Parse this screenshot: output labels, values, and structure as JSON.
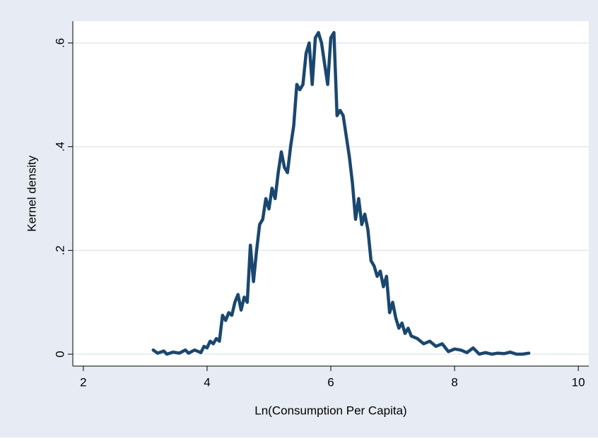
{
  "chart_data": {
    "type": "line",
    "xlabel": "Ln(Consumption Per Capita)",
    "ylabel": "Kernel density",
    "xlim": [
      1.83,
      10.17
    ],
    "ylim": [
      -0.023,
      0.642
    ],
    "xticks": [
      2,
      4,
      6,
      8,
      10
    ],
    "yticks": [
      0,
      {
        "value": 0.2,
        "label": ".2"
      },
      {
        "value": 0.4,
        "label": ".4"
      },
      {
        "value": 0.6,
        "label": ".6"
      }
    ],
    "grid": true,
    "series": [
      {
        "color": "#1a476f",
        "x": [
          3.13,
          3.2,
          3.3,
          3.35,
          3.45,
          3.55,
          3.65,
          3.7,
          3.8,
          3.9,
          3.95,
          4.0,
          4.05,
          4.1,
          4.15,
          4.2,
          4.25,
          4.3,
          4.35,
          4.4,
          4.45,
          4.5,
          4.55,
          4.6,
          4.65,
          4.7,
          4.75,
          4.8,
          4.85,
          4.9,
          4.95,
          5.0,
          5.05,
          5.1,
          5.15,
          5.2,
          5.25,
          5.3,
          5.35,
          5.4,
          5.45,
          5.5,
          5.55,
          5.6,
          5.65,
          5.7,
          5.75,
          5.8,
          5.85,
          5.9,
          5.95,
          6.0,
          6.05,
          6.1,
          6.15,
          6.2,
          6.25,
          6.3,
          6.35,
          6.4,
          6.45,
          6.5,
          6.55,
          6.6,
          6.65,
          6.7,
          6.75,
          6.8,
          6.85,
          6.9,
          6.95,
          7.0,
          7.05,
          7.1,
          7.15,
          7.2,
          7.25,
          7.3,
          7.4,
          7.5,
          7.6,
          7.7,
          7.8,
          7.9,
          8.0,
          8.1,
          8.2,
          8.3,
          8.4,
          8.5,
          8.6,
          8.7,
          8.8,
          8.9,
          9.0,
          9.1,
          9.2
        ],
        "values": [
          0.008,
          0.002,
          0.006,
          0.0,
          0.004,
          0.002,
          0.008,
          0.002,
          0.008,
          0.003,
          0.015,
          0.012,
          0.025,
          0.02,
          0.03,
          0.025,
          0.075,
          0.065,
          0.08,
          0.075,
          0.1,
          0.115,
          0.085,
          0.11,
          0.1,
          0.21,
          0.14,
          0.2,
          0.25,
          0.26,
          0.3,
          0.28,
          0.32,
          0.3,
          0.35,
          0.39,
          0.36,
          0.35,
          0.4,
          0.44,
          0.52,
          0.51,
          0.52,
          0.58,
          0.6,
          0.52,
          0.61,
          0.62,
          0.6,
          0.56,
          0.52,
          0.61,
          0.62,
          0.46,
          0.47,
          0.46,
          0.42,
          0.38,
          0.33,
          0.26,
          0.3,
          0.25,
          0.27,
          0.24,
          0.18,
          0.17,
          0.15,
          0.16,
          0.13,
          0.15,
          0.08,
          0.1,
          0.07,
          0.05,
          0.06,
          0.04,
          0.05,
          0.035,
          0.03,
          0.02,
          0.025,
          0.015,
          0.02,
          0.005,
          0.01,
          0.008,
          0.003,
          0.012,
          0.0,
          0.003,
          0.0,
          0.002,
          0.001,
          0.004,
          0.0,
          0.0,
          0.002
        ]
      }
    ]
  }
}
